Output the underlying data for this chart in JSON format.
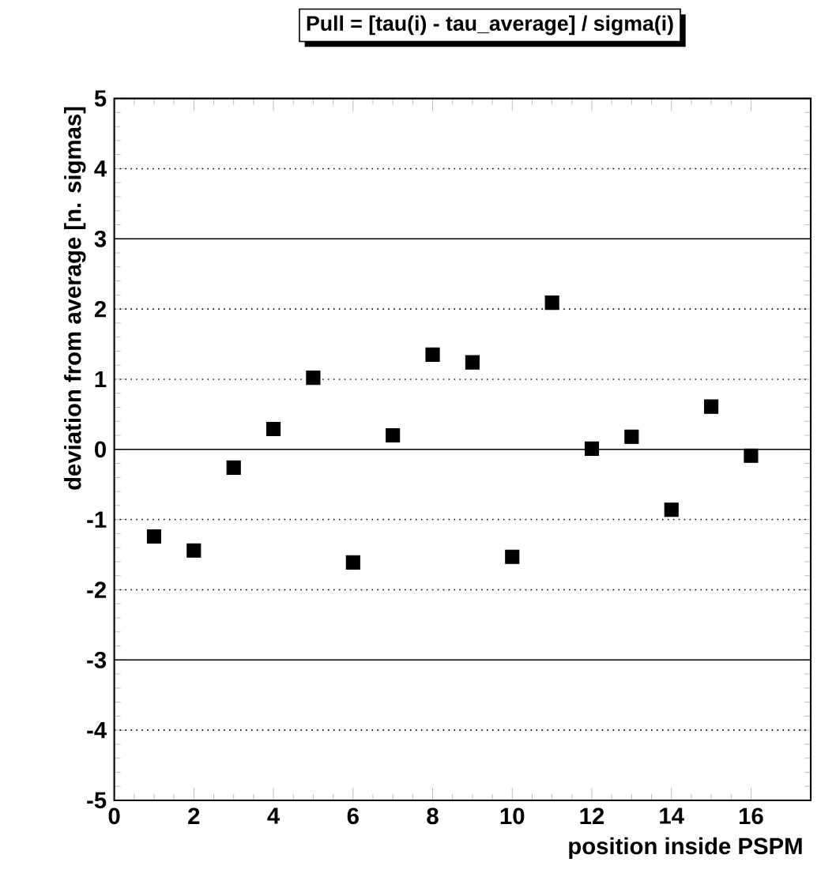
{
  "chart_data": {
    "type": "scatter",
    "title": "Pull = [tau(i) - tau_average] / sigma(i)",
    "xlabel": "position inside PSPM",
    "ylabel": "deviation from average [n. sigmas]",
    "x": [
      1,
      2,
      3,
      4,
      5,
      6,
      7,
      8,
      9,
      10,
      11,
      12,
      13,
      14,
      15,
      16
    ],
    "values": [
      -1.24,
      -1.44,
      -0.26,
      0.29,
      1.02,
      -1.61,
      0.2,
      1.35,
      1.24,
      -1.53,
      2.09,
      0.01,
      0.18,
      -0.86,
      0.61,
      -0.09
    ],
    "color": "#000000",
    "marker": "square",
    "xlim": [
      0,
      17.5
    ],
    "ylim": [
      -5,
      5
    ],
    "xticks": [
      0,
      2,
      4,
      6,
      8,
      10,
      12,
      14,
      16
    ],
    "yticks": [
      -5,
      -4,
      -3,
      -2,
      -1,
      0,
      1,
      2,
      3,
      4,
      5
    ],
    "ref_lines": [
      {
        "axis": "y",
        "value": 4,
        "line_style": "dotted",
        "color": "#000000"
      },
      {
        "axis": "y",
        "value": 3,
        "line_style": "solid",
        "color": "#000000"
      },
      {
        "axis": "y",
        "value": 2,
        "line_style": "dotted",
        "color": "#000000"
      },
      {
        "axis": "y",
        "value": 1,
        "line_style": "dotted",
        "color": "#000000"
      },
      {
        "axis": "y",
        "value": 0,
        "line_style": "solid",
        "color": "#000000"
      },
      {
        "axis": "y",
        "value": -1,
        "line_style": "dotted",
        "color": "#000000"
      },
      {
        "axis": "y",
        "value": -2,
        "line_style": "dotted",
        "color": "#000000"
      },
      {
        "axis": "y",
        "value": -3,
        "line_style": "solid",
        "color": "#000000"
      },
      {
        "axis": "y",
        "value": -4,
        "line_style": "dotted",
        "color": "#000000"
      }
    ]
  }
}
